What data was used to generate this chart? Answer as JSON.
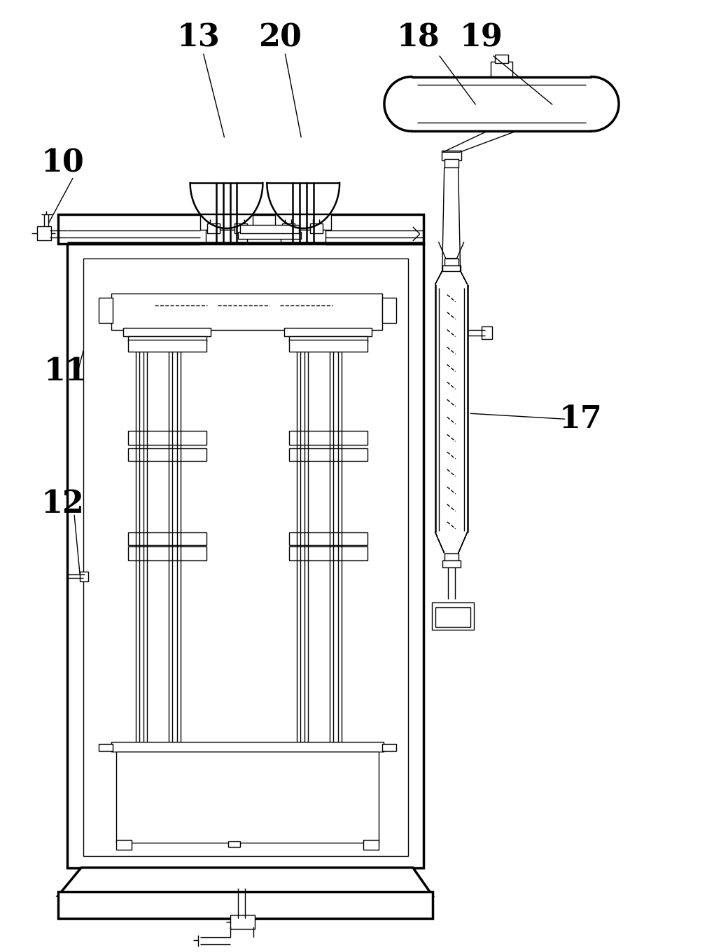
{
  "bg_color": "#ffffff",
  "lc": "#000000",
  "lw": 1.0,
  "lw2": 1.8,
  "lw3": 2.5,
  "fig_w": 10.4,
  "fig_h": 13.59,
  "label_fs": 32
}
